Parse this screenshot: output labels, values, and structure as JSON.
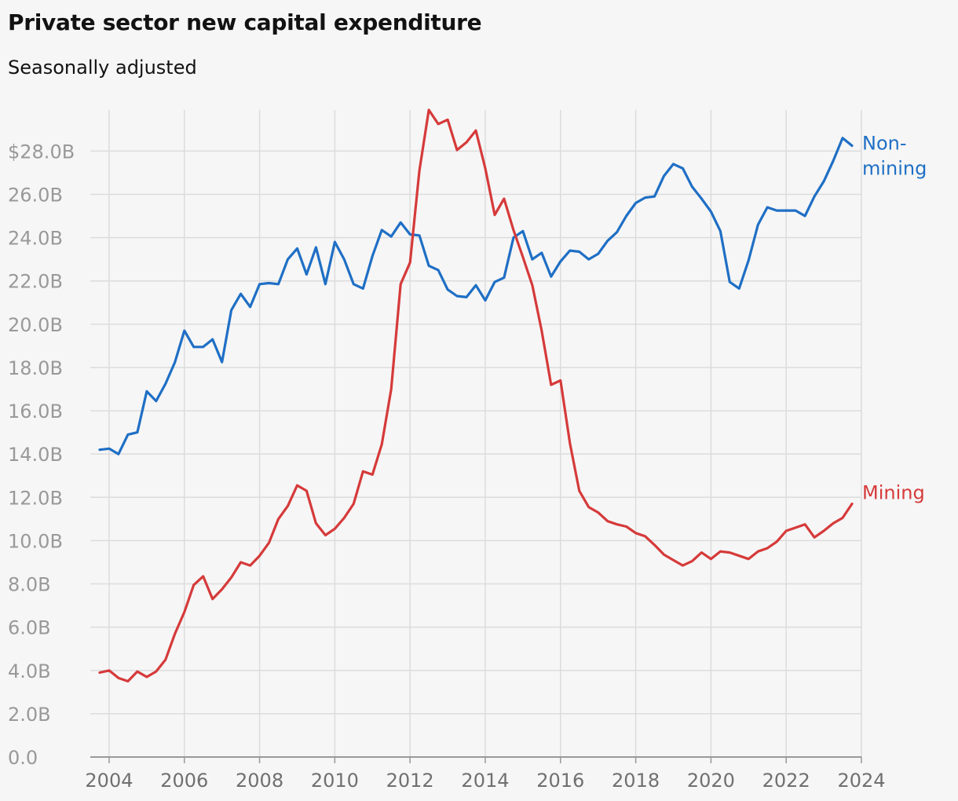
{
  "title": "Private sector new capital expenditure",
  "subtitle": "Seasonally adjusted",
  "colors": {
    "non_mining": "#1f6fc5",
    "mining": "#d63a3a",
    "grid": "#dcdcdc",
    "axis": "#999999"
  },
  "chart_data": {
    "type": "line",
    "title": "Private sector new capital expenditure",
    "subtitle": "Seasonally adjusted",
    "x_ticks": [
      2004,
      2006,
      2008,
      2010,
      2012,
      2014,
      2016,
      2018,
      2020,
      2022,
      2024
    ],
    "y_ticks": [
      {
        "value": 0,
        "label": "0.0"
      },
      {
        "value": 2,
        "label": "2.0B"
      },
      {
        "value": 4,
        "label": "4.0B"
      },
      {
        "value": 6,
        "label": "6.0B"
      },
      {
        "value": 8,
        "label": "8.0B"
      },
      {
        "value": 10,
        "label": "10.0B"
      },
      {
        "value": 12,
        "label": "12.0B"
      },
      {
        "value": 14,
        "label": "14.0B"
      },
      {
        "value": 16,
        "label": "16.0B"
      },
      {
        "value": 18,
        "label": "18.0B"
      },
      {
        "value": 20,
        "label": "20.0B"
      },
      {
        "value": 22,
        "label": "22.0B"
      },
      {
        "value": 24,
        "label": "24.0B"
      },
      {
        "value": 26,
        "label": "26.0B"
      },
      {
        "value": 28,
        "label": "$28.0B"
      }
    ],
    "xlim": [
      2003.5,
      2024
    ],
    "ylim": [
      0,
      29.9
    ],
    "x": [
      2003.75,
      2004.0,
      2004.25,
      2004.5,
      2004.75,
      2005.0,
      2005.25,
      2005.5,
      2005.75,
      2006.0,
      2006.25,
      2006.5,
      2006.75,
      2007.0,
      2007.25,
      2007.5,
      2007.75,
      2008.0,
      2008.25,
      2008.5,
      2008.75,
      2009.0,
      2009.25,
      2009.5,
      2009.75,
      2010.0,
      2010.25,
      2010.5,
      2010.75,
      2011.0,
      2011.25,
      2011.5,
      2011.75,
      2012.0,
      2012.25,
      2012.5,
      2012.75,
      2013.0,
      2013.25,
      2013.5,
      2013.75,
      2014.0,
      2014.25,
      2014.5,
      2014.75,
      2015.0,
      2015.25,
      2015.5,
      2015.75,
      2016.0,
      2016.25,
      2016.5,
      2016.75,
      2017.0,
      2017.25,
      2017.5,
      2017.75,
      2018.0,
      2018.25,
      2018.5,
      2018.75,
      2019.0,
      2019.25,
      2019.5,
      2019.75,
      2020.0,
      2020.25,
      2020.5,
      2020.75,
      2021.0,
      2021.25,
      2021.5,
      2021.75,
      2022.0,
      2022.25,
      2022.5,
      2022.75,
      2023.0,
      2023.25,
      2023.5,
      2023.75
    ],
    "series": [
      {
        "name": "Non-mining",
        "label_lines": [
          "Non-",
          "mining"
        ],
        "values": [
          14.2,
          14.25,
          14.0,
          14.9,
          15.0,
          16.9,
          16.45,
          17.25,
          18.25,
          19.7,
          18.95,
          18.95,
          19.3,
          18.25,
          20.65,
          21.4,
          20.8,
          21.85,
          21.9,
          21.85,
          23.0,
          23.5,
          22.3,
          23.55,
          21.85,
          23.8,
          23.0,
          21.85,
          21.65,
          23.15,
          24.35,
          24.05,
          24.7,
          24.15,
          24.1,
          22.7,
          22.5,
          21.6,
          21.3,
          21.25,
          21.8,
          21.1,
          21.95,
          22.15,
          24.0,
          24.3,
          23.0,
          23.3,
          22.2,
          22.9,
          23.4,
          23.35,
          23.0,
          23.25,
          23.85,
          24.25,
          25.0,
          25.6,
          25.85,
          25.9,
          26.85,
          27.4,
          27.2,
          26.35,
          25.8,
          25.2,
          24.3,
          21.95,
          21.65,
          22.95,
          24.6,
          25.4,
          25.25,
          25.25,
          25.25,
          25.0,
          25.9,
          26.6,
          27.55,
          28.6,
          28.25
        ]
      },
      {
        "name": "Mining",
        "label_lines": [
          "Mining"
        ],
        "values": [
          3.9,
          4.0,
          3.65,
          3.5,
          3.95,
          3.7,
          3.95,
          4.5,
          5.7,
          6.7,
          7.95,
          8.35,
          7.3,
          7.75,
          8.3,
          9.0,
          8.85,
          9.3,
          9.9,
          11.0,
          11.6,
          12.55,
          12.3,
          10.8,
          10.25,
          10.55,
          11.05,
          11.7,
          13.2,
          13.05,
          14.45,
          17.0,
          21.85,
          22.85,
          27.1,
          29.9,
          29.25,
          29.45,
          28.05,
          28.4,
          28.95,
          27.2,
          25.05,
          25.8,
          24.35,
          23.1,
          21.8,
          19.7,
          17.2,
          17.4,
          14.5,
          12.3,
          11.55,
          11.3,
          10.9,
          10.75,
          10.65,
          10.35,
          10.2,
          9.8,
          9.35,
          9.1,
          8.85,
          9.05,
          9.45,
          9.15,
          9.5,
          9.45,
          9.3,
          9.15,
          9.5,
          9.65,
          9.95,
          10.45,
          10.6,
          10.75,
          10.15,
          10.45,
          10.8,
          11.05,
          11.7
        ]
      }
    ],
    "grid": true,
    "legend": "inline-right"
  }
}
